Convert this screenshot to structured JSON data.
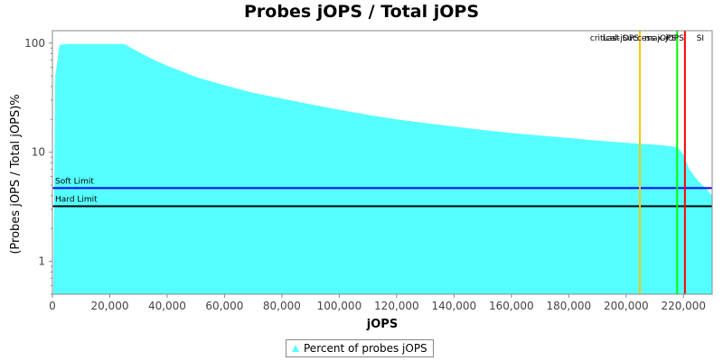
{
  "chart_data": {
    "type": "area",
    "title": "Probes jOPS / Total jOPS",
    "xlabel": "jOPS",
    "ylabel": "(Probes jOPS / Total jOPS)%",
    "yscale": "log",
    "xlim": [
      0,
      230000
    ],
    "ylim": [
      0.5,
      130
    ],
    "x_ticks": [
      0,
      20000,
      40000,
      60000,
      80000,
      100000,
      120000,
      140000,
      160000,
      180000,
      200000,
      220000
    ],
    "x_tick_labels": [
      "0",
      "20,000",
      "40,000",
      "60,000",
      "80,000",
      "100,000",
      "120,000",
      "140,000",
      "160,000",
      "180,000",
      "200,000",
      "220,000"
    ],
    "y_ticks": [
      1,
      10,
      100
    ],
    "y_tick_labels": [
      "1",
      "10",
      "100"
    ],
    "grid": false,
    "legend_position": "bottom-center",
    "series": [
      {
        "name": "Percent of probes jOPS",
        "color": "#55ffff",
        "x": [
          300,
          1000,
          2500,
          5000,
          10000,
          15000,
          20000,
          25000,
          30000,
          35000,
          40000,
          50000,
          60000,
          70000,
          80000,
          90000,
          100000,
          110000,
          120000,
          130000,
          140000,
          150000,
          160000,
          170000,
          180000,
          190000,
          200000,
          210000,
          215000,
          218000,
          220000,
          222000,
          225000,
          228000,
          230000
        ],
        "y": [
          0.5,
          50,
          96,
          98,
          98,
          98,
          98,
          98,
          83,
          71,
          62,
          49,
          41,
          35,
          31,
          27.5,
          24.5,
          22,
          20,
          18.5,
          17.2,
          16,
          15,
          14.2,
          13.5,
          12.8,
          12.2,
          11.7,
          11.4,
          11.1,
          9.5,
          7.0,
          5.5,
          4.6,
          4.0
        ]
      }
    ],
    "horizontal_lines": [
      {
        "label": "Soft Limit",
        "y": 4.7,
        "color": "#0000ff"
      },
      {
        "label": "Hard Limit",
        "y": 3.2,
        "color": "#000000"
      }
    ],
    "vertical_lines": [
      {
        "label": "critical-jOPS",
        "x": 204800,
        "color": "#ffc800"
      },
      {
        "label": "Last Success jOPS",
        "x": 217800,
        "color": "#00ff00"
      },
      {
        "label": "max-jOPS",
        "x": 220500,
        "color": "#ff0000"
      },
      {
        "label": "SI",
        "x": 227500,
        "color": "#000000"
      }
    ]
  }
}
